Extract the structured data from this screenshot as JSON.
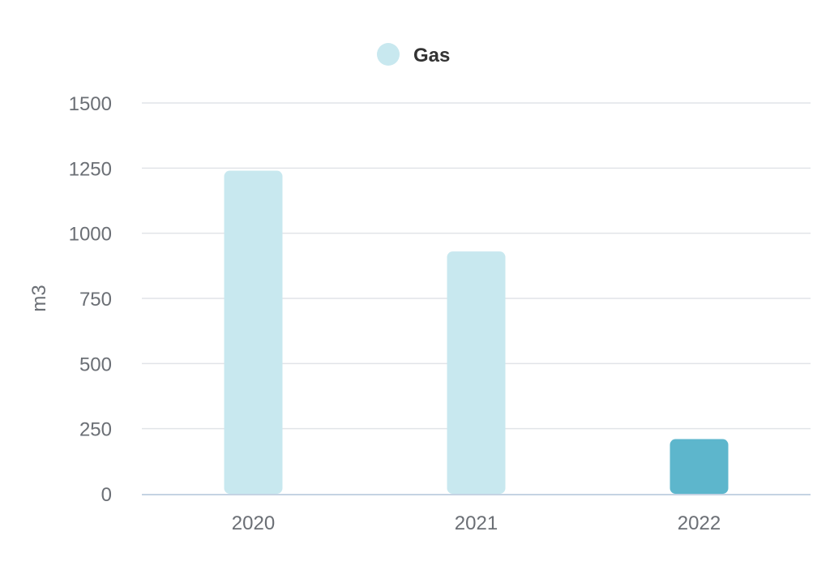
{
  "chart_data": {
    "type": "bar",
    "categories": [
      "2020",
      "2021",
      "2022"
    ],
    "series": [
      {
        "name": "Gas",
        "values": [
          1240,
          930,
          210
        ]
      }
    ],
    "xlabel": "",
    "ylabel": "m3",
    "ylim": [
      0,
      1500
    ],
    "yticks": [
      "0",
      "250",
      "500",
      "750",
      "1000",
      "1250",
      "1500"
    ],
    "grid": true,
    "legend_position": "top-center",
    "highlighted_category": "2022",
    "colors": {
      "bar": "#c8e8ef",
      "bar_highlight": "#5db6cc",
      "grid": "#e1e4e8",
      "baseline": "#c5d3e3",
      "legend_marker": "#c8e8ef"
    }
  }
}
